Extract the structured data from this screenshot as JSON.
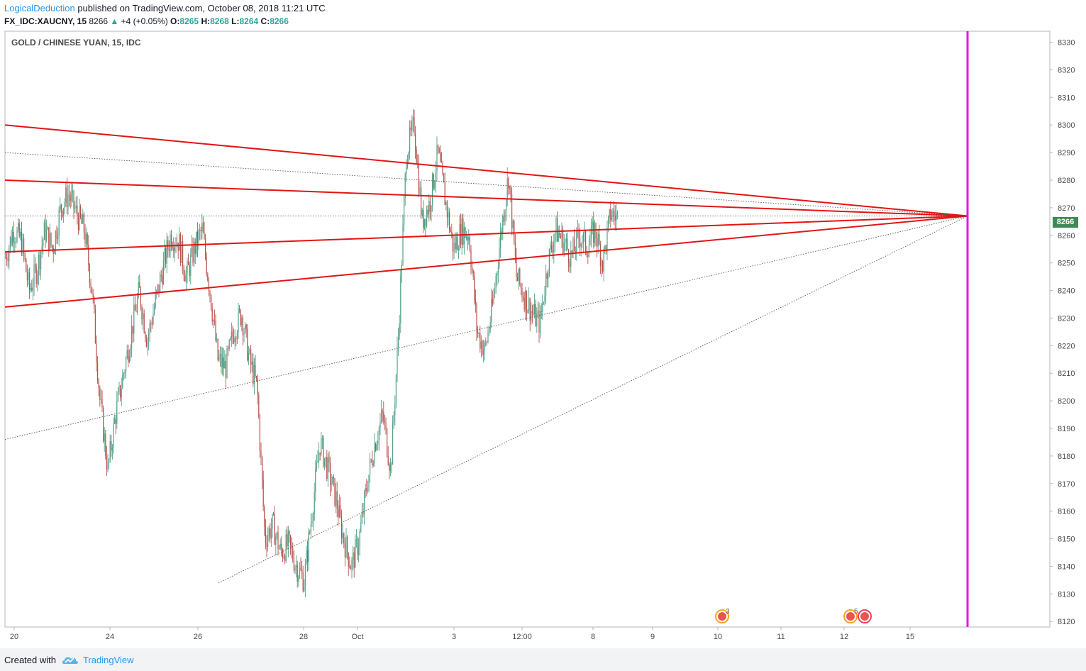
{
  "header": {
    "author": "LogicalDeduction",
    "published": " published on TradingView.com, October 08, 2018 11:21 UTC"
  },
  "quote": {
    "symbol": "FX_IDC:XAUCNY, 15",
    "last": "8266",
    "arrow": "▲",
    "change": "+4 (+0.05%)",
    "o_label": "O:",
    "o": "8265",
    "h_label": "H:",
    "h": "8268",
    "l_label": "L:",
    "l": "8264",
    "c_label": "C:",
    "c": "8266"
  },
  "footer": {
    "created": "Created with",
    "brand": "TradingView"
  },
  "colors": {
    "trendline": "#e31414",
    "vertical": "#e815e8",
    "candle_up": "#53a08a",
    "candle_down": "#b8524b",
    "badge": "#3f8a54"
  },
  "chart_data": {
    "type": "line",
    "title": "GOLD / CHINESE YUAN, 15, IDC",
    "current_price": "8266",
    "y_ticks": [
      "8330",
      "8320",
      "8310",
      "8300",
      "8290",
      "8280",
      "8270",
      "8260",
      "8250",
      "8240",
      "8230",
      "8220",
      "8210",
      "8200",
      "8190",
      "8180",
      "8170",
      "8160",
      "8150",
      "8140",
      "8130",
      "8120"
    ],
    "ylim": [
      8118,
      8334
    ],
    "x_ticks": [
      "20",
      "24",
      "26",
      "28",
      "Oct",
      "3",
      "12:00",
      "8",
      "9",
      "10",
      "11",
      "12",
      "15"
    ],
    "grid": false,
    "apex_price": 8267,
    "series": [
      {
        "values": [
          8252,
          8262,
          8258,
          8240,
          8248,
          8262,
          8255,
          8270,
          8275,
          8268,
          8262,
          8240,
          8200,
          8175,
          8195,
          8210,
          8225,
          8240,
          8222,
          8235,
          8248,
          8260,
          8258,
          8245,
          8255,
          8262,
          8240,
          8215,
          8212,
          8225,
          8232,
          8215,
          8205,
          8150,
          8155,
          8145,
          8148,
          8140,
          8135,
          8160,
          8185,
          8175,
          8165,
          8150,
          8140,
          8150,
          8170,
          8185,
          8195,
          8175,
          8225,
          8290,
          8300,
          8265,
          8272,
          8290,
          8272,
          8255,
          8262,
          8260,
          8225,
          8218,
          8235,
          8260,
          8282,
          8245,
          8238,
          8232,
          8228,
          8250,
          8262,
          8258,
          8252,
          8260,
          8256,
          8262,
          8250,
          8268,
          8266
        ]
      }
    ],
    "trendlines": [
      {
        "style": "solid",
        "color": "red",
        "start_price": 8300
      },
      {
        "style": "solid",
        "color": "red",
        "start_price": 8280
      },
      {
        "style": "solid",
        "color": "red",
        "start_price": 8254
      },
      {
        "style": "solid",
        "color": "red",
        "start_price": 8234
      },
      {
        "style": "dotted",
        "color": "gray",
        "start_price": 8290
      },
      {
        "style": "dotted",
        "color": "gray",
        "start_price": 8267
      },
      {
        "style": "dotted",
        "color": "gray",
        "start_price": 8186
      },
      {
        "style": "dotted",
        "color": "gray",
        "start_price": 8134
      }
    ],
    "events": [
      {
        "x_tick": "10",
        "count": "3"
      },
      {
        "x_tick": "12",
        "count": "5"
      }
    ]
  }
}
